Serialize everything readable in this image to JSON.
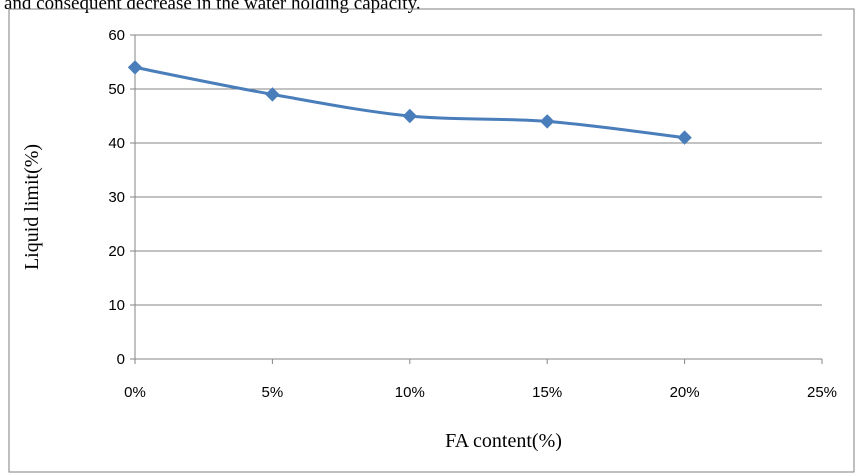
{
  "header": {
    "text": "and consequent decrease in the water holding capacity."
  },
  "chart_data": {
    "type": "line",
    "title": "",
    "xlabel": "FA content(%)",
    "ylabel": "Liquid limit(%)",
    "x": [
      0,
      5,
      10,
      15,
      20
    ],
    "x_tick_labels": [
      "0%",
      "5%",
      "10%",
      "15%",
      "20%",
      "25%"
    ],
    "x_ticks": [
      0,
      5,
      10,
      15,
      20,
      25
    ],
    "xlim": [
      0,
      25
    ],
    "y_ticks": [
      0,
      10,
      20,
      30,
      40,
      50,
      60
    ],
    "y_tick_labels": [
      "0",
      "10",
      "20",
      "30",
      "40",
      "50",
      "60"
    ],
    "ylim": [
      0,
      60
    ],
    "grid": "horizontal",
    "legend": "none",
    "series": [
      {
        "values": [
          54,
          49,
          45,
          44,
          41
        ],
        "color": "#4a7ebb",
        "marker": "diamond"
      }
    ]
  }
}
